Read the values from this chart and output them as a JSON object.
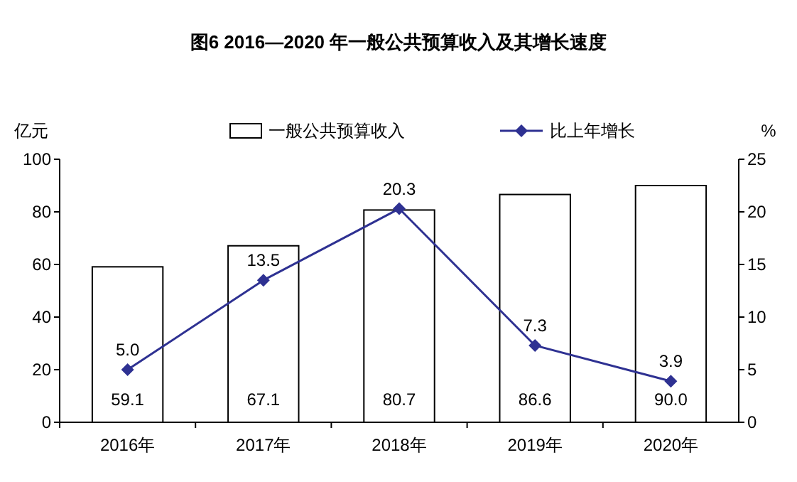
{
  "chart_data": {
    "type": "bar",
    "title": "图6 2016—2020 年一般公共预算收入及其增长速度",
    "ylabel": "亿元",
    "y2label": "%",
    "categories": [
      "2016年",
      "2017年",
      "2018年",
      "2019年",
      "2020年"
    ],
    "series": [
      {
        "name": "一般公共预算收入",
        "color": "#ffffff",
        "values": [
          59.1,
          67.1,
          80.7,
          86.6,
          90.0
        ],
        "value_labels": [
          "59.1",
          "67.1",
          "80.7",
          "86.6",
          "90.0"
        ]
      },
      {
        "name": "比上年增长",
        "type": "line",
        "axis": "y2",
        "color": "#2e3192",
        "values": [
          5.0,
          13.5,
          20.3,
          7.3,
          3.9
        ],
        "value_labels": [
          "5.0",
          "13.5",
          "20.3",
          "7.3",
          "3.9"
        ]
      }
    ],
    "ylim": [
      0,
      100
    ],
    "yticks": [
      0,
      20,
      40,
      60,
      80,
      100
    ],
    "y2lim": [
      0,
      25
    ],
    "y2ticks": [
      0,
      5,
      10,
      15,
      20,
      25
    ],
    "data_labels": true,
    "legend": "top",
    "grid": false,
    "marker": "diamond",
    "line_style": "solid"
  }
}
